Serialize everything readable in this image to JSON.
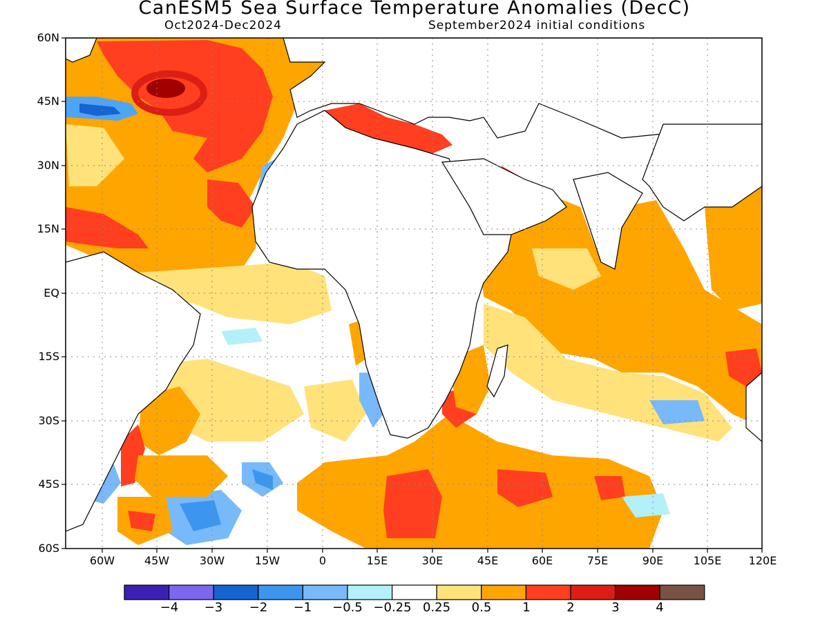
{
  "header": {
    "title": "CanESM5 Sea Surface Temperature Anomalies (DecC)",
    "period": "Oct2024-Dec2024",
    "initial": "September2024 initial conditions"
  },
  "map": {
    "lat_labels": [
      "60N",
      "45N",
      "30N",
      "15N",
      "EQ",
      "15S",
      "30S",
      "45S",
      "60S"
    ],
    "lon_labels": [
      "60W",
      "45W",
      "30W",
      "15W",
      "0",
      "15E",
      "30E",
      "45E",
      "60E",
      "75E",
      "90E",
      "105E",
      "120E"
    ],
    "lon_range": [
      -70,
      120
    ],
    "lat_range": [
      -60,
      60
    ],
    "regions": [
      {
        "name": "north-atlantic-subpolar",
        "anomaly": 1,
        "color": "#ffa500"
      },
      {
        "name": "north-atlantic-core",
        "anomaly": 2,
        "color": "#ff3f1f"
      },
      {
        "name": "newfoundland-warm-spot",
        "anomaly": 3,
        "color": "#a00000"
      },
      {
        "name": "gulf-stream-cool",
        "anomaly": -1,
        "color": "#4fa5f5"
      },
      {
        "name": "subtropical-north-atlantic",
        "anomaly": 1,
        "color": "#ffa500"
      },
      {
        "name": "mediterranean",
        "anomaly": 2,
        "color": "#ff3f1f"
      },
      {
        "name": "black-sea",
        "anomaly": 2,
        "color": "#ff3f1f"
      },
      {
        "name": "equatorial-atlantic",
        "anomaly": 0.25,
        "color": "#ffe27a"
      },
      {
        "name": "arabian-sea",
        "anomaly": 1,
        "color": "#ffa500"
      },
      {
        "name": "bay-of-bengal",
        "anomaly": 1,
        "color": "#ffa500"
      },
      {
        "name": "south-indian-ocean",
        "anomaly": 1,
        "color": "#ffa500"
      },
      {
        "name": "mozambique-channel",
        "anomaly": 2,
        "color": "#ff3f1f"
      },
      {
        "name": "southern-ocean-africa",
        "anomaly": 1,
        "color": "#ffa500"
      },
      {
        "name": "brazil-malvinas-confluence",
        "anomaly": 2,
        "color": "#ff3f1f"
      },
      {
        "name": "south-atlantic-cool-patch",
        "anomaly": -1,
        "color": "#4fa5f5"
      },
      {
        "name": "australia-west-warm",
        "anomaly": 2,
        "color": "#ff3f1f"
      }
    ]
  },
  "colorbar": {
    "colors": [
      "#3c20b4",
      "#7b68ee",
      "#1464d2",
      "#3c96f0",
      "#78b9fa",
      "#b4f0fa",
      "#ffffff",
      "#ffe27a",
      "#ffa500",
      "#ff3f1f",
      "#dc1e14",
      "#a00000",
      "#7a5243"
    ],
    "labels": [
      "−4",
      "−3",
      "−2",
      "−1",
      "−0.5",
      "−0.25",
      "0.25",
      "0.5",
      "1",
      "2",
      "3",
      "4"
    ]
  }
}
